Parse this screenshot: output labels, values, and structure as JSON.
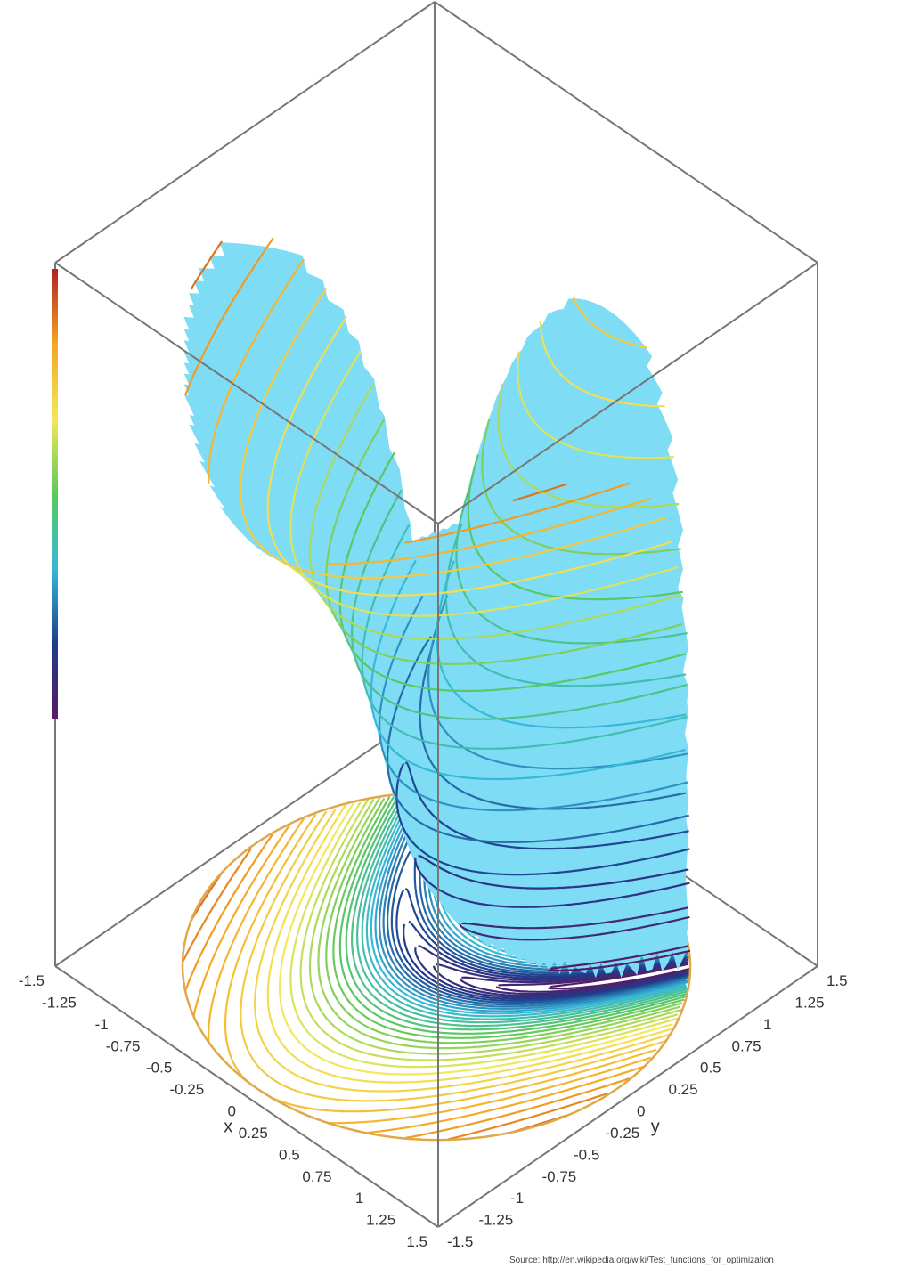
{
  "chart_data": {
    "type": "surface3d",
    "title": "",
    "x_axis": {
      "label": "x",
      "ticks": [
        "-1.5",
        "-1.25",
        "-1",
        "-0.75",
        "-0.5",
        "-0.25",
        "0",
        "0.25",
        "0.5",
        "0.75",
        "1",
        "1.25",
        "1.5"
      ],
      "range": [
        -1.5,
        1.5
      ]
    },
    "y_axis": {
      "label": "y",
      "ticks": [
        "-1.5",
        "-1.25",
        "-1",
        "-0.75",
        "-0.5",
        "-0.25",
        "0",
        "0.25",
        "0.5",
        "0.75",
        "1",
        "1.25",
        "1.5"
      ],
      "range": [
        -1.5,
        1.5
      ]
    },
    "domain": "disk x² + y² ≤ 2",
    "surface_color": "#7fdcf5",
    "projected_contours": true,
    "colorbar": {
      "colors": [
        "#b22222",
        "#f5a623",
        "#f2e85a",
        "#5cc85c",
        "#36b8d8",
        "#1e3c8c",
        "#5a1a64"
      ],
      "tick_labels": [
        "",
        "",
        "",
        "",
        "",
        "",
        "",
        "",
        "",
        "",
        "",
        "",
        "",
        "",
        "",
        "",
        "",
        "",
        "",
        "",
        "",
        "",
        "",
        "",
        "",
        "",
        "",
        "",
        "",
        "",
        "",
        "",
        "",
        "",
        "",
        "",
        "",
        "",
        "",
        "",
        "",
        "",
        "",
        ""
      ]
    },
    "source_note": "Source: http://en.wikipedia.org/wiki/Test_functions_for_optimization"
  }
}
